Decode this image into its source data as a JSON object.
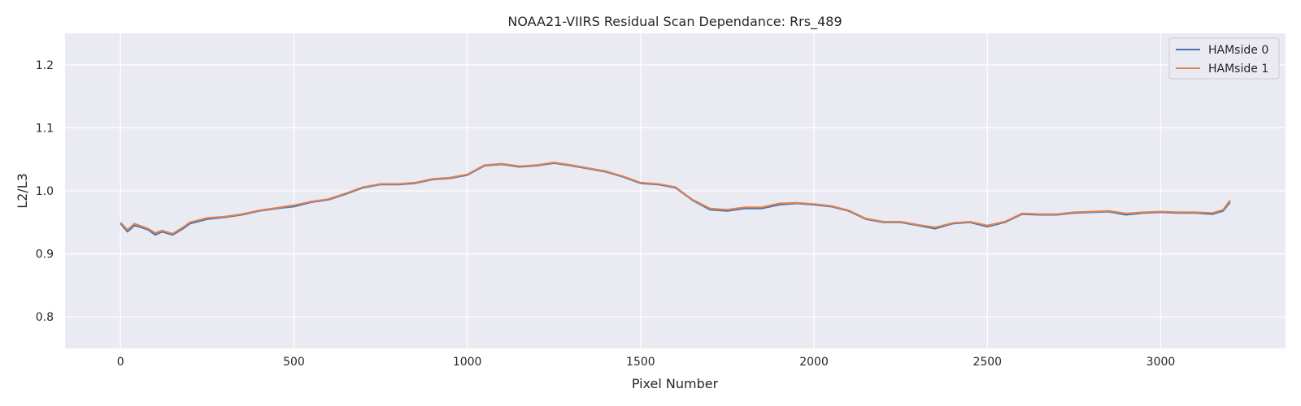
{
  "chart_data": {
    "type": "line",
    "title": "NOAA21-VIIRS Residual Scan Dependance: Rrs_489",
    "xlabel": "Pixel Number",
    "ylabel": "L2/L3",
    "xlim": [
      -160,
      3360
    ],
    "ylim": [
      0.75,
      1.25
    ],
    "x_ticks": [
      0,
      500,
      1000,
      1500,
      2000,
      2500,
      3000
    ],
    "x_tick_labels": [
      "0",
      "500",
      "1000",
      "1500",
      "2000",
      "2500",
      "3000"
    ],
    "y_ticks": [
      0.8,
      0.9,
      1.0,
      1.1,
      1.2
    ],
    "y_tick_labels": [
      "0.8",
      "0.9",
      "1.0",
      "1.1",
      "1.2"
    ],
    "grid": true,
    "legend_position": "top-right",
    "x": [
      0,
      20,
      40,
      60,
      80,
      100,
      120,
      150,
      180,
      200,
      250,
      300,
      350,
      400,
      450,
      500,
      550,
      600,
      650,
      700,
      750,
      800,
      850,
      900,
      950,
      1000,
      1050,
      1100,
      1150,
      1200,
      1250,
      1300,
      1350,
      1400,
      1450,
      1500,
      1550,
      1600,
      1650,
      1700,
      1750,
      1800,
      1850,
      1900,
      1950,
      2000,
      2050,
      2100,
      2150,
      2200,
      2250,
      2300,
      2350,
      2400,
      2450,
      2500,
      2550,
      2600,
      2650,
      2700,
      2750,
      2800,
      2850,
      2900,
      2950,
      3000,
      3050,
      3100,
      3150,
      3180,
      3200
    ],
    "series": [
      {
        "name": "HAMside 0",
        "color": "#4c72b0",
        "values": [
          0.948,
          0.935,
          0.945,
          0.942,
          0.938,
          0.93,
          0.935,
          0.93,
          0.94,
          0.948,
          0.955,
          0.958,
          0.962,
          0.968,
          0.972,
          0.975,
          0.982,
          0.986,
          0.995,
          1.005,
          1.01,
          1.01,
          1.012,
          1.018,
          1.02,
          1.025,
          1.04,
          1.042,
          1.038,
          1.04,
          1.044,
          1.04,
          1.035,
          1.03,
          1.022,
          1.012,
          1.01,
          1.005,
          0.985,
          0.97,
          0.968,
          0.972,
          0.972,
          0.978,
          0.98,
          0.978,
          0.975,
          0.968,
          0.955,
          0.95,
          0.95,
          0.945,
          0.94,
          0.948,
          0.95,
          0.943,
          0.95,
          0.963,
          0.962,
          0.962,
          0.965,
          0.966,
          0.967,
          0.962,
          0.965,
          0.966,
          0.965,
          0.965,
          0.963,
          0.968,
          0.982
        ]
      },
      {
        "name": "HAMside 1",
        "color": "#dd8452",
        "values": [
          0.95,
          0.938,
          0.948,
          0.944,
          0.94,
          0.933,
          0.937,
          0.932,
          0.942,
          0.95,
          0.957,
          0.959,
          0.963,
          0.969,
          0.973,
          0.977,
          0.983,
          0.987,
          0.996,
          1.006,
          1.011,
          1.011,
          1.013,
          1.019,
          1.021,
          1.026,
          1.041,
          1.043,
          1.039,
          1.041,
          1.045,
          1.041,
          1.036,
          1.031,
          1.023,
          1.013,
          1.011,
          1.006,
          0.986,
          0.972,
          0.97,
          0.974,
          0.974,
          0.98,
          0.981,
          0.979,
          0.976,
          0.969,
          0.956,
          0.951,
          0.951,
          0.946,
          0.942,
          0.949,
          0.951,
          0.945,
          0.951,
          0.964,
          0.963,
          0.963,
          0.966,
          0.967,
          0.968,
          0.964,
          0.966,
          0.967,
          0.966,
          0.966,
          0.965,
          0.97,
          0.985
        ]
      }
    ]
  }
}
